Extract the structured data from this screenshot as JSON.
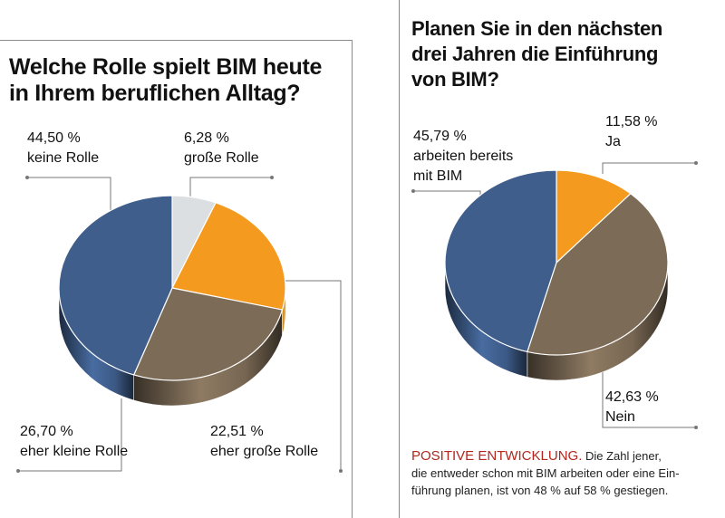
{
  "colors": {
    "blue": "#3f5e8c",
    "orange": "#f39a1f",
    "brown": "#7c6b56",
    "gray": "#dcdfe2",
    "accent_red": "#b3271e"
  },
  "left": {
    "title_line1": "Welche Rolle spielt BIM heute",
    "title_line2": "in Ihrem beruflichen Alltag?",
    "labels": {
      "keine_pct": "44,50 %",
      "keine_text": "keine Rolle",
      "gross_pct": "6,28 %",
      "gross_text": "große Rolle",
      "kleine_pct": "26,70 %",
      "kleine_text": "eher kleine Rolle",
      "ehergross_pct": "22,51 %",
      "ehergross_text": "eher große Rolle"
    }
  },
  "right": {
    "title_line1": "Planen Sie in den nächsten",
    "title_line2": "drei Jahren die Einführung",
    "title_line3": "von BIM?",
    "labels": {
      "arbeiten_pct": "45,79 %",
      "arbeiten_text1": "arbeiten bereits",
      "arbeiten_text2": "mit BIM",
      "ja_pct": "11,58 %",
      "ja_text": "Ja",
      "nein_pct": "42,63 %",
      "nein_text": "Nein"
    },
    "note_highlight": "POSITIVE ENTWICKLUNG.",
    "note_line1": "Die Zahl jener,",
    "note_line2": "die entweder schon mit BIM arbeiten oder eine Ein-",
    "note_line3": "führung planen, ist von 48 % auf 58 % gestiegen."
  },
  "chart_data": [
    {
      "type": "pie",
      "title": "Welche Rolle spielt BIM heute in Ihrem beruflichen Alltag?",
      "categories": [
        "keine Rolle",
        "große Rolle",
        "eher große Rolle",
        "eher kleine Rolle"
      ],
      "values": [
        44.5,
        6.28,
        22.51,
        26.7
      ],
      "colors": [
        "#3f5e8c",
        "#dcdfe2",
        "#f39a1f",
        "#7c6b56"
      ]
    },
    {
      "type": "pie",
      "title": "Planen Sie in den nächsten drei Jahren die Einführung von BIM?",
      "categories": [
        "arbeiten bereits mit BIM",
        "Ja",
        "Nein"
      ],
      "values": [
        45.79,
        11.58,
        42.63
      ],
      "colors": [
        "#3f5e8c",
        "#f39a1f",
        "#7c6b56"
      ]
    }
  ]
}
